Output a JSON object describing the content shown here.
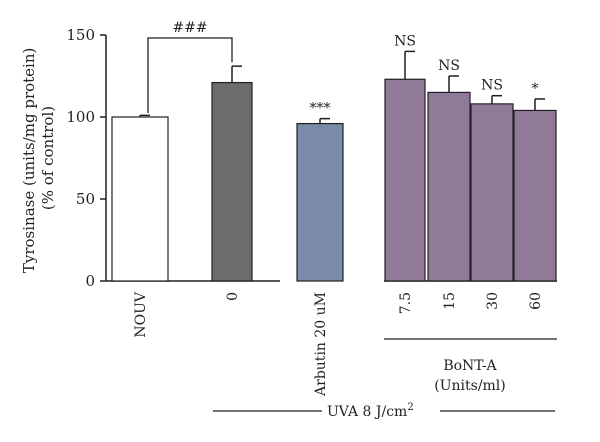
{
  "chart_data": {
    "type": "bar",
    "ylabel_line1": "Tyrosinase (units/mg protein)",
    "ylabel_line2": "(% of control)",
    "ylim": [
      0,
      150
    ],
    "yticks": [
      0,
      50,
      100,
      150
    ],
    "grid": false,
    "categories": [
      "NOUV",
      "0",
      "Arbutin 20 uM",
      "7.5",
      "15",
      "30",
      "60"
    ],
    "values": [
      100,
      121,
      96,
      123,
      115,
      108,
      104
    ],
    "errors": [
      1,
      10,
      3,
      17,
      10,
      5,
      7
    ],
    "bar_colors": [
      "#ffffff",
      "#6c6c6c",
      "#7a8aa8",
      "#907a98",
      "#907a98",
      "#907a98",
      "#907a98"
    ],
    "annotations": [
      "",
      "",
      "***",
      "NS",
      "NS",
      "NS",
      "*"
    ],
    "comparison": {
      "from": 0,
      "to": 1,
      "label": "###"
    },
    "group_labels": {
      "botox_line1": "BoNT-A",
      "botox_line2": "(Units/ml)",
      "uva_main": "UVA 8 J/cm",
      "uva_sup": "2"
    }
  }
}
